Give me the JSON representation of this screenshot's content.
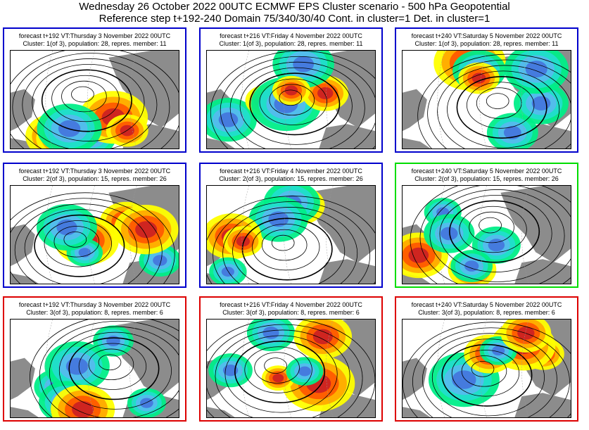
{
  "header": {
    "line1": "Wednesday 26 October 2022 00UTC ECMWF EPS Cluster scenario - 500 hPa Geopotential",
    "line2": "Reference step t+192-240 Domain 75/340/30/40 Cont. in cluster=1 Det. in cluster=1"
  },
  "colors": {
    "blue_frame": "#0000cc",
    "green_frame": "#00dd00",
    "red_frame": "#dd0000",
    "land": "#8c8c8c",
    "warm": [
      "#ffff00",
      "#ffaa00",
      "#ff5a00",
      "#cc2222",
      "#aa3366"
    ],
    "cold": [
      "#00ee88",
      "#22ddcc",
      "#55bbee",
      "#4477dd",
      "#2244aa"
    ]
  },
  "panels": [
    {
      "cap1": "forecast t+192 VT:Thursday 3 November 2022 00UTC",
      "cap2": "Cluster: 1(of 3), population: 28, repres. member: 11",
      "frame": "blue"
    },
    {
      "cap1": "forecast t+216 VT:Friday 4 November 2022 00UTC",
      "cap2": "Cluster: 1(of 3), population: 28, repres. member: 11",
      "frame": "blue"
    },
    {
      "cap1": "forecast t+240 VT:Saturday 5 November 2022 00UTC",
      "cap2": "Cluster: 1(of 3), population: 28, repres. member: 11",
      "frame": "blue"
    },
    {
      "cap1": "forecast t+192 VT:Thursday 3 November 2022 00UTC",
      "cap2": "Cluster: 2(of 3), population: 15, repres. member: 26",
      "frame": "blue"
    },
    {
      "cap1": "forecast t+216 VT:Friday 4 November 2022 00UTC",
      "cap2": "Cluster: 2(of 3), population: 15, repres. member: 26",
      "frame": "blue"
    },
    {
      "cap1": "forecast t+240 VT:Saturday 5 November 2022 00UTC",
      "cap2": "Cluster: 2(of 3), population: 15, repres. member: 26",
      "frame": "green"
    },
    {
      "cap1": "forecast t+192 VT:Thursday 3 November 2022 00UTC",
      "cap2": "Cluster: 3(of 3), population: 8, repres. member: 6",
      "frame": "red"
    },
    {
      "cap1": "forecast t+216 VT:Friday 4 November 2022 00UTC",
      "cap2": "Cluster: 3(of 3), population: 8, repres. member: 6",
      "frame": "red"
    },
    {
      "cap1": "forecast t+240 VT:Saturday 5 November 2022 00UTC",
      "cap2": "Cluster: 3(of 3), population: 8, repres. member: 6",
      "frame": "red"
    }
  ]
}
